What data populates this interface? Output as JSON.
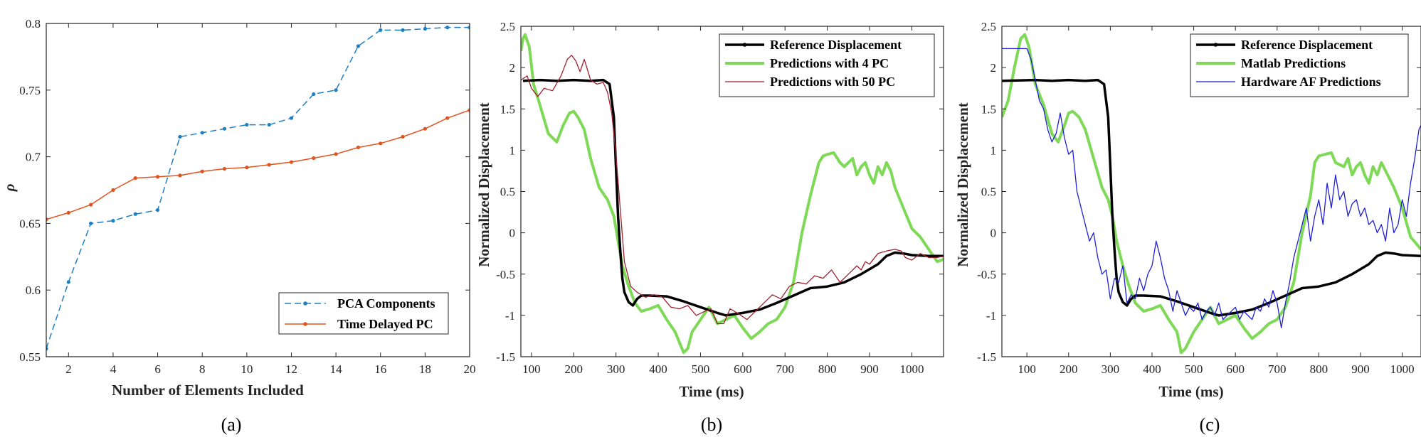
{
  "chart_data": [
    {
      "type": "line",
      "panel": "a",
      "caption": "(a)",
      "xlabel": "Number of Elements Included",
      "ylabel": "ρ",
      "xlim": [
        1,
        20
      ],
      "ylim": [
        0.55,
        0.8
      ],
      "xticks": [
        2,
        4,
        6,
        8,
        10,
        12,
        14,
        16,
        18,
        20
      ],
      "yticks": [
        0.55,
        0.6,
        0.65,
        0.7,
        0.75,
        0.8
      ],
      "legend_position": "bottom-right",
      "series": [
        {
          "name": "PCA Components",
          "color": "#1f7fc4",
          "dash": true,
          "x": [
            1,
            2,
            3,
            4,
            5,
            6,
            7,
            8,
            9,
            10,
            11,
            12,
            13,
            14,
            15,
            16,
            17,
            18,
            19,
            20
          ],
          "y": [
            0.556,
            0.606,
            0.65,
            0.652,
            0.657,
            0.66,
            0.715,
            0.718,
            0.721,
            0.724,
            0.724,
            0.729,
            0.747,
            0.75,
            0.783,
            0.795,
            0.795,
            0.796,
            0.797,
            0.797
          ]
        },
        {
          "name": "Time Delayed PC",
          "color": "#e0541f",
          "dash": false,
          "x": [
            1,
            2,
            3,
            4,
            5,
            6,
            7,
            8,
            9,
            10,
            11,
            12,
            13,
            14,
            15,
            16,
            17,
            18,
            19,
            20
          ],
          "y": [
            0.653,
            0.658,
            0.664,
            0.675,
            0.684,
            0.685,
            0.686,
            0.689,
            0.691,
            0.692,
            0.694,
            0.696,
            0.699,
            0.702,
            0.707,
            0.71,
            0.715,
            0.721,
            0.729,
            0.735
          ]
        }
      ]
    },
    {
      "type": "line",
      "panel": "b",
      "caption": "(b)",
      "xlabel": "Time (ms)",
      "ylabel": "Normalized Displacement",
      "xlim": [
        75,
        1075
      ],
      "ylim": [
        -1.5,
        2.5
      ],
      "xticks": [
        100,
        200,
        300,
        400,
        500,
        600,
        700,
        800,
        900,
        1000
      ],
      "yticks": [
        -1.5,
        -1,
        -0.5,
        0,
        0.5,
        1,
        1.5,
        2,
        2.5
      ],
      "legend_position": "top-right",
      "series": [
        {
          "name": "Reference Displacement",
          "color": "#000000",
          "width": 3.5,
          "x": [
            80,
            120,
            160,
            200,
            240,
            270,
            285,
            295,
            300,
            305,
            310,
            315,
            320,
            330,
            340,
            350,
            360,
            380,
            420,
            460,
            500,
            540,
            560,
            600,
            640,
            680,
            720,
            760,
            800,
            840,
            880,
            920,
            940,
            960,
            980,
            1000,
            1040,
            1075
          ],
          "y": [
            1.84,
            1.85,
            1.84,
            1.85,
            1.84,
            1.85,
            1.8,
            1.4,
            0.8,
            0.2,
            -0.2,
            -0.55,
            -0.72,
            -0.84,
            -0.88,
            -0.8,
            -0.76,
            -0.76,
            -0.77,
            -0.83,
            -0.9,
            -0.97,
            -1.0,
            -0.97,
            -0.93,
            -0.85,
            -0.76,
            -0.67,
            -0.65,
            -0.6,
            -0.5,
            -0.38,
            -0.28,
            -0.24,
            -0.25,
            -0.27,
            -0.28,
            -0.28
          ]
        },
        {
          "name": "Predictions with 4 PC",
          "color": "#7ed957",
          "width": 4,
          "x": [
            75,
            80,
            85,
            95,
            105,
            120,
            140,
            160,
            175,
            190,
            200,
            210,
            225,
            240,
            260,
            280,
            295,
            305,
            315,
            330,
            345,
            360,
            380,
            400,
            420,
            440,
            460,
            470,
            480,
            500,
            520,
            540,
            560,
            580,
            600,
            620,
            640,
            660,
            680,
            700,
            720,
            740,
            760,
            780,
            790,
            800,
            815,
            830,
            840,
            860,
            870,
            880,
            890,
            900,
            910,
            920,
            930,
            940,
            950,
            960,
            980,
            1000,
            1020,
            1040,
            1060,
            1075
          ],
          "y": [
            2.2,
            2.35,
            2.4,
            2.25,
            1.8,
            1.55,
            1.2,
            1.1,
            1.3,
            1.45,
            1.47,
            1.4,
            1.25,
            0.9,
            0.55,
            0.4,
            0.2,
            -0.1,
            -0.4,
            -0.65,
            -0.85,
            -0.95,
            -0.92,
            -0.88,
            -1.05,
            -1.2,
            -1.45,
            -1.4,
            -1.2,
            -1.05,
            -0.9,
            -1.1,
            -1.05,
            -1.0,
            -1.15,
            -1.28,
            -1.2,
            -1.1,
            -1.05,
            -0.9,
            -0.6,
            0.0,
            0.45,
            0.85,
            0.93,
            0.95,
            0.97,
            0.85,
            0.8,
            0.9,
            0.7,
            0.8,
            0.85,
            0.7,
            0.6,
            0.8,
            0.7,
            0.85,
            0.75,
            0.55,
            0.3,
            0.05,
            -0.05,
            -0.2,
            -0.35,
            -0.32
          ]
        },
        {
          "name": "Predictions with 50 PC",
          "color": "#a0202f",
          "width": 1.3,
          "x": [
            75,
            90,
            100,
            115,
            130,
            150,
            170,
            185,
            195,
            205,
            215,
            225,
            240,
            255,
            270,
            280,
            290,
            300,
            310,
            320,
            335,
            350,
            370,
            390,
            410,
            430,
            450,
            470,
            490,
            510,
            525,
            540,
            555,
            570,
            590,
            610,
            630,
            650,
            670,
            690,
            710,
            730,
            750,
            770,
            790,
            810,
            830,
            850,
            870,
            880,
            890,
            900,
            920,
            940,
            960,
            975,
            985,
            1000,
            1020,
            1040,
            1060,
            1075
          ],
          "y": [
            1.85,
            1.9,
            1.75,
            1.65,
            1.75,
            1.72,
            1.9,
            2.1,
            2.15,
            2.08,
            1.95,
            2.1,
            1.85,
            1.8,
            1.82,
            1.7,
            1.45,
            0.95,
            0.3,
            -0.35,
            -0.65,
            -0.72,
            -0.78,
            -0.75,
            -0.78,
            -0.9,
            -0.92,
            -0.88,
            -1.0,
            -0.95,
            -0.92,
            -1.1,
            -1.1,
            -0.92,
            -0.98,
            -1.05,
            -0.95,
            -0.85,
            -0.75,
            -0.8,
            -0.65,
            -0.6,
            -0.62,
            -0.52,
            -0.55,
            -0.45,
            -0.6,
            -0.5,
            -0.4,
            -0.45,
            -0.35,
            -0.38,
            -0.25,
            -0.22,
            -0.2,
            -0.22,
            -0.3,
            -0.33,
            -0.25,
            -0.3,
            -0.3,
            -0.28
          ]
        }
      ]
    },
    {
      "type": "line",
      "panel": "c",
      "caption": "(c)",
      "xlabel": "Time (ms)",
      "ylabel": "Normalized Displacement",
      "xlim": [
        40,
        1045
      ],
      "ylim": [
        -1.5,
        2.5
      ],
      "xticks": [
        100,
        200,
        300,
        400,
        500,
        600,
        700,
        800,
        900,
        1000
      ],
      "yticks": [
        -1.5,
        -1,
        -0.5,
        0,
        0.5,
        1,
        1.5,
        2,
        2.5
      ],
      "legend_position": "top-right",
      "series": [
        {
          "name": "Reference Displacement",
          "color": "#000000",
          "width": 3.5,
          "x": [
            40,
            120,
            160,
            200,
            240,
            270,
            285,
            295,
            300,
            305,
            310,
            315,
            320,
            330,
            340,
            350,
            360,
            380,
            420,
            460,
            500,
            540,
            560,
            600,
            640,
            680,
            720,
            760,
            800,
            840,
            880,
            920,
            940,
            960,
            980,
            1000,
            1045
          ],
          "y": [
            1.84,
            1.85,
            1.84,
            1.85,
            1.84,
            1.85,
            1.8,
            1.4,
            0.8,
            0.2,
            -0.2,
            -0.55,
            -0.72,
            -0.84,
            -0.88,
            -0.8,
            -0.76,
            -0.76,
            -0.77,
            -0.83,
            -0.9,
            -0.97,
            -1.0,
            -0.97,
            -0.93,
            -0.85,
            -0.76,
            -0.67,
            -0.65,
            -0.6,
            -0.5,
            -0.38,
            -0.28,
            -0.24,
            -0.25,
            -0.27,
            -0.28
          ]
        },
        {
          "name": "Matlab Predictions",
          "color": "#7ed957",
          "width": 4,
          "x": [
            40,
            55,
            70,
            85,
            95,
            105,
            120,
            140,
            160,
            175,
            190,
            200,
            210,
            225,
            240,
            260,
            280,
            295,
            305,
            315,
            330,
            345,
            360,
            380,
            400,
            420,
            440,
            460,
            470,
            480,
            500,
            520,
            540,
            560,
            580,
            600,
            620,
            640,
            660,
            680,
            700,
            720,
            740,
            760,
            780,
            790,
            800,
            815,
            830,
            840,
            860,
            870,
            880,
            890,
            900,
            910,
            920,
            930,
            940,
            950,
            960,
            980,
            1000,
            1020,
            1045
          ],
          "y": [
            1.4,
            1.6,
            2.0,
            2.35,
            2.4,
            2.25,
            1.8,
            1.55,
            1.2,
            1.1,
            1.3,
            1.45,
            1.47,
            1.4,
            1.25,
            0.9,
            0.55,
            0.4,
            0.2,
            -0.1,
            -0.4,
            -0.65,
            -0.85,
            -0.95,
            -0.92,
            -0.88,
            -1.05,
            -1.2,
            -1.45,
            -1.4,
            -1.2,
            -1.05,
            -0.9,
            -1.1,
            -1.05,
            -1.0,
            -1.15,
            -1.28,
            -1.2,
            -1.1,
            -1.05,
            -0.9,
            -0.6,
            0.0,
            0.45,
            0.85,
            0.93,
            0.95,
            0.97,
            0.85,
            0.8,
            0.9,
            0.7,
            0.8,
            0.85,
            0.7,
            0.6,
            0.8,
            0.7,
            0.85,
            0.75,
            0.55,
            0.3,
            -0.05,
            -0.2
          ]
        },
        {
          "name": "Hardware AF Predictions",
          "color": "#1f1fd6",
          "width": 1.3,
          "x": [
            40,
            70,
            100,
            110,
            120,
            130,
            140,
            150,
            160,
            170,
            180,
            190,
            200,
            210,
            220,
            230,
            240,
            250,
            260,
            270,
            280,
            290,
            300,
            310,
            320,
            330,
            340,
            350,
            360,
            370,
            380,
            390,
            400,
            410,
            420,
            430,
            440,
            450,
            460,
            470,
            480,
            490,
            500,
            510,
            520,
            530,
            540,
            550,
            560,
            570,
            580,
            590,
            600,
            610,
            620,
            630,
            640,
            650,
            660,
            670,
            680,
            690,
            700,
            710,
            720,
            730,
            740,
            750,
            760,
            770,
            780,
            790,
            800,
            810,
            820,
            830,
            840,
            850,
            860,
            870,
            880,
            890,
            900,
            910,
            920,
            930,
            940,
            950,
            960,
            970,
            980,
            990,
            1000,
            1010,
            1020,
            1030,
            1040,
            1045
          ],
          "y": [
            2.23,
            2.23,
            2.23,
            2.1,
            1.85,
            1.6,
            1.5,
            1.25,
            1.1,
            1.2,
            1.45,
            1.15,
            0.95,
            1.0,
            0.5,
            0.3,
            0.1,
            -0.1,
            0.0,
            -0.3,
            -0.5,
            -0.45,
            -0.8,
            -0.55,
            -0.6,
            -0.4,
            -0.85,
            -0.75,
            -0.8,
            -0.55,
            -0.7,
            -0.5,
            -0.4,
            -0.1,
            -0.3,
            -0.55,
            -0.7,
            -0.95,
            -0.7,
            -0.85,
            -1.0,
            -0.9,
            -0.95,
            -0.85,
            -1.05,
            -0.95,
            -0.9,
            -1.0,
            -0.85,
            -1.05,
            -1.0,
            -0.95,
            -0.9,
            -1.05,
            -0.95,
            -1.0,
            -1.05,
            -0.9,
            -0.95,
            -0.8,
            -0.9,
            -0.7,
            -0.85,
            -1.15,
            -0.85,
            -0.6,
            -0.3,
            -0.1,
            0.1,
            0.3,
            -0.1,
            0.2,
            0.4,
            0.1,
            0.6,
            0.3,
            0.7,
            0.4,
            0.5,
            0.2,
            0.35,
            0.4,
            0.2,
            0.3,
            0.1,
            0.15,
            0.0,
            0.1,
            -0.1,
            0.3,
            0.0,
            0.1,
            0.4,
            0.2,
            0.6,
            0.9,
            1.25,
            1.3
          ]
        }
      ]
    }
  ]
}
